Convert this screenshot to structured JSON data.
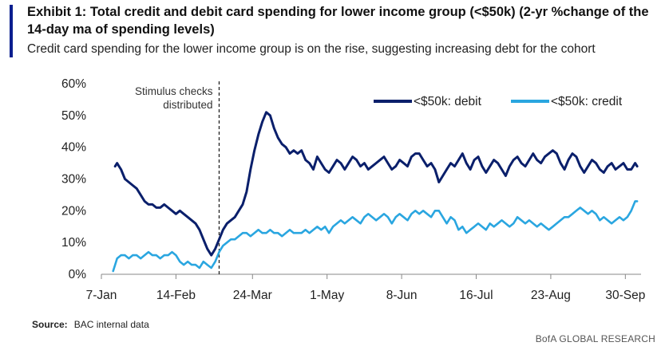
{
  "header": {
    "title": "Exhibit 1: Total credit and debit card spending for lower income group (<$50k) (2-yr %change of the 14-day  ma of spending levels)",
    "subtitle": "Credit card spending for the lower income group is on the rise, suggesting increasing debt for the cohort"
  },
  "footer": {
    "source_label": "Source:",
    "source_text": "BAC internal data",
    "brand": "BofA GLOBAL RESEARCH"
  },
  "colors": {
    "debit": "#0a1f6b",
    "credit": "#2aa6e0",
    "accent_bar": "#0a1f8f"
  },
  "chart_data": {
    "type": "line",
    "title": "",
    "xlabel": "",
    "ylabel": "",
    "ylim": [
      0,
      60
    ],
    "yticks": [
      0,
      10,
      20,
      30,
      40,
      50,
      60
    ],
    "ytick_labels": [
      "0%",
      "10%",
      "20%",
      "30%",
      "40%",
      "50%",
      "60%"
    ],
    "xlim": [
      0,
      275
    ],
    "xticks": [
      0,
      38,
      77,
      115,
      153,
      191,
      229,
      267
    ],
    "xtick_labels": [
      "7-Jan",
      "14-Feb",
      "24-Mar",
      "1-May",
      "8-Jun",
      "16-Jul",
      "23-Aug",
      "30-Sep"
    ],
    "grid": false,
    "legend": "top-right",
    "annotation": {
      "x": 60,
      "lines": [
        "Stimulus checks",
        "distributed"
      ]
    },
    "series": [
      {
        "name": "<$50k: debit",
        "x": [
          7,
          8,
          9,
          10,
          12,
          14,
          16,
          18,
          20,
          22,
          24,
          26,
          28,
          30,
          32,
          34,
          36,
          38,
          40,
          42,
          44,
          46,
          48,
          50,
          52,
          54,
          56,
          58,
          60,
          62,
          64,
          66,
          68,
          70,
          72,
          74,
          76,
          78,
          80,
          82,
          84,
          86,
          88,
          90,
          92,
          94,
          96,
          98,
          100,
          102,
          104,
          106,
          108,
          110,
          112,
          114,
          116,
          118,
          120,
          122,
          124,
          126,
          128,
          130,
          132,
          134,
          136,
          138,
          140,
          142,
          144,
          146,
          148,
          150,
          152,
          154,
          156,
          158,
          160,
          162,
          164,
          166,
          168,
          170,
          172,
          174,
          176,
          178,
          180,
          182,
          184,
          186,
          188,
          190,
          192,
          194,
          196,
          198,
          200,
          202,
          204,
          206,
          208,
          210,
          212,
          214,
          216,
          218,
          220,
          222,
          224,
          226,
          228,
          230,
          232,
          234,
          236,
          238,
          240,
          242,
          244,
          246,
          248,
          250,
          252,
          254,
          256,
          258,
          260,
          262,
          264,
          266,
          268,
          270,
          272,
          273
        ],
        "values": [
          34,
          35,
          34,
          33,
          30,
          29,
          28,
          27,
          25,
          23,
          22,
          22,
          21,
          21,
          22,
          21,
          20,
          19,
          20,
          19,
          18,
          17,
          16,
          14,
          11,
          8,
          6,
          8,
          11,
          14,
          16,
          17,
          18,
          20,
          22,
          26,
          33,
          39,
          44,
          48,
          51,
          50,
          46,
          43,
          41,
          40,
          38,
          39,
          38,
          39,
          36,
          35,
          33,
          37,
          35,
          33,
          32,
          34,
          36,
          35,
          33,
          35,
          37,
          36,
          34,
          35,
          33,
          34,
          35,
          36,
          37,
          35,
          33,
          34,
          36,
          35,
          34,
          37,
          38,
          38,
          36,
          34,
          35,
          33,
          29,
          31,
          33,
          35,
          34,
          36,
          38,
          35,
          33,
          36,
          37,
          34,
          32,
          34,
          36,
          35,
          33,
          31,
          34,
          36,
          37,
          35,
          34,
          36,
          38,
          36,
          35,
          37,
          38,
          39,
          38,
          35,
          33,
          36,
          38,
          37,
          34,
          32,
          34,
          36,
          35,
          33,
          32,
          34,
          35,
          33,
          34,
          35,
          33,
          33,
          35,
          34
        ]
      },
      {
        "name": "<$50k: credit",
        "x": [
          6,
          7,
          8,
          10,
          12,
          14,
          16,
          18,
          20,
          22,
          24,
          26,
          28,
          30,
          32,
          34,
          36,
          38,
          40,
          42,
          44,
          46,
          48,
          50,
          52,
          54,
          56,
          58,
          60,
          62,
          64,
          66,
          68,
          70,
          72,
          74,
          76,
          78,
          80,
          82,
          84,
          86,
          88,
          90,
          92,
          94,
          96,
          98,
          100,
          102,
          104,
          106,
          108,
          110,
          112,
          114,
          116,
          118,
          120,
          122,
          124,
          126,
          128,
          130,
          132,
          134,
          136,
          138,
          140,
          142,
          144,
          146,
          148,
          150,
          152,
          154,
          156,
          158,
          160,
          162,
          164,
          166,
          168,
          170,
          172,
          174,
          176,
          178,
          180,
          182,
          184,
          186,
          188,
          190,
          192,
          194,
          196,
          198,
          200,
          202,
          204,
          206,
          208,
          210,
          212,
          214,
          216,
          218,
          220,
          222,
          224,
          226,
          228,
          230,
          232,
          234,
          236,
          238,
          240,
          242,
          244,
          246,
          248,
          250,
          252,
          254,
          256,
          258,
          260,
          262,
          264,
          266,
          268,
          270,
          272,
          273
        ],
        "values": [
          1,
          3,
          5,
          6,
          6,
          5,
          6,
          6,
          5,
          6,
          7,
          6,
          6,
          5,
          6,
          6,
          7,
          6,
          4,
          3,
          4,
          3,
          3,
          2,
          4,
          3,
          2,
          4,
          7,
          9,
          10,
          11,
          11,
          12,
          13,
          13,
          12,
          13,
          14,
          13,
          13,
          14,
          13,
          13,
          12,
          13,
          14,
          13,
          13,
          13,
          14,
          13,
          14,
          15,
          14,
          15,
          13,
          15,
          16,
          17,
          16,
          17,
          18,
          17,
          16,
          18,
          19,
          18,
          17,
          18,
          19,
          18,
          16,
          18,
          19,
          18,
          17,
          19,
          20,
          19,
          20,
          19,
          18,
          20,
          20,
          18,
          16,
          18,
          17,
          14,
          15,
          13,
          14,
          15,
          16,
          15,
          14,
          16,
          15,
          16,
          17,
          16,
          15,
          16,
          18,
          17,
          16,
          17,
          16,
          15,
          16,
          15,
          14,
          15,
          16,
          17,
          18,
          18,
          19,
          20,
          21,
          20,
          19,
          20,
          19,
          17,
          18,
          17,
          16,
          17,
          18,
          17,
          18,
          20,
          23,
          23
        ]
      }
    ]
  }
}
